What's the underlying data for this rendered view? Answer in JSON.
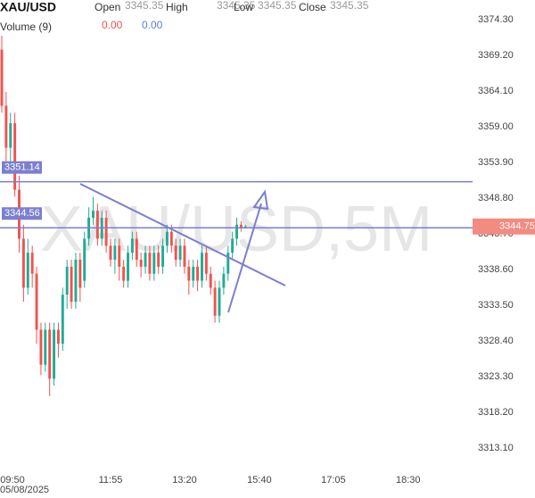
{
  "chart_data": {
    "type": "candlestick",
    "title": "XAU/USD",
    "watermark": "XAU/USD,5M",
    "header": [
      {
        "label": "Open",
        "value": 3345.35
      },
      {
        "label": "High",
        "value": 3345.35
      },
      {
        "label": "Low",
        "value": 3345.35
      },
      {
        "label": "Close",
        "value": 3345.35
      }
    ],
    "volume": {
      "label": "Volume (9)",
      "values": [
        {
          "value": 0,
          "label": "0.00",
          "color": "#ef5350"
        },
        {
          "value": 0,
          "label": "0.00",
          "color": "#5b7fd6"
        }
      ]
    },
    "up_color": "#22ab94",
    "down_color": "#ef5350",
    "open": [
      3370,
      3362,
      3356,
      3359.5,
      3350,
      3343,
      3336,
      3341,
      3338,
      3330,
      3325,
      3330,
      3323,
      3330,
      3328,
      3335,
      3339,
      3334,
      3340,
      3337,
      3343,
      3346,
      3347,
      3343,
      3346,
      3342,
      3340,
      3342,
      3339,
      3337,
      3341,
      3343,
      3340,
      3339,
      3341,
      3338,
      3341,
      3339,
      3342,
      3344,
      3342,
      3340,
      3342,
      3339,
      3337,
      3339,
      3337,
      3341,
      3338,
      3336,
      3332,
      3336,
      3338,
      3341,
      3343,
      3345,
      3344.75
    ],
    "high": [
      3372,
      3364,
      3361,
      3361,
      3352,
      3345,
      3343,
      3342,
      3339,
      3331,
      3331,
      3331,
      3331,
      3331,
      3336,
      3340,
      3340,
      3341,
      3341,
      3344,
      3347.5,
      3349,
      3348,
      3347,
      3347,
      3343,
      3343,
      3343,
      3340,
      3342,
      3344,
      3344,
      3341,
      3342,
      3342,
      3342,
      3342,
      3343,
      3345,
      3345,
      3343,
      3343,
      3343,
      3340,
      3340,
      3340,
      3342,
      3342,
      3339,
      3337,
      3337,
      3339,
      3342,
      3344,
      3346,
      3345.5,
      3345
    ],
    "low": [
      3361,
      3354,
      3354,
      3349,
      3341,
      3334,
      3335,
      3336,
      3328,
      3323.5,
      3324,
      3320.5,
      3322,
      3326,
      3327,
      3333,
      3333,
      3333,
      3334,
      3336,
      3342,
      3345,
      3342,
      3342,
      3341,
      3339,
      3338,
      3337,
      3336,
      3336,
      3340,
      3339,
      3337.5,
      3338,
      3337,
      3337,
      3338,
      3338,
      3341,
      3341,
      3339,
      3339,
      3338,
      3335,
      3336,
      3335.5,
      3336,
      3337,
      3335,
      3331,
      3331,
      3335,
      3337,
      3340,
      3342,
      3344,
      3344.5
    ],
    "close": [
      3362,
      3356,
      3359.5,
      3350,
      3343,
      3336,
      3341,
      3338,
      3330,
      3325,
      3330,
      3323,
      3330,
      3328,
      3335,
      3339,
      3334,
      3340,
      3336,
      3343,
      3346,
      3347,
      3343,
      3346,
      3342,
      3340,
      3342,
      3339,
      3337,
      3341,
      3343,
      3340,
      3339,
      3341,
      3338,
      3341,
      3339,
      3342,
      3344,
      3342,
      3340,
      3342,
      3339,
      3337,
      3339,
      3337,
      3341,
      3338,
      3336,
      3332,
      3336,
      3338,
      3341,
      3343,
      3345,
      3344.5,
      3344.75
    ],
    "xlim": [
      -0.41,
      108.2
    ],
    "xticks": [
      {
        "value": 2.46,
        "label": "09:50"
      },
      {
        "value": 25.0,
        "label": "11:55"
      },
      {
        "value": 42.0,
        "label": "13:20"
      },
      {
        "value": 59.2,
        "label": "15:40"
      },
      {
        "value": 76.2,
        "label": "17:05"
      },
      {
        "value": 93.4,
        "label": "18:30"
      }
    ],
    "date": "05/08/2025",
    "ylim": [
      3310.8,
      3377.11
    ],
    "yticks": [
      {
        "value": 3374.3,
        "label": "3374.30"
      },
      {
        "value": 3369.2,
        "label": "3369.20"
      },
      {
        "value": 3364.1,
        "label": "3364.10"
      },
      {
        "value": 3359.0,
        "label": "3359.00"
      },
      {
        "value": 3353.9,
        "label": "3353.90"
      },
      {
        "value": 3348.8,
        "label": "3348.80"
      },
      {
        "value": 3343.7,
        "label": "3343.70"
      },
      {
        "value": 3338.6,
        "label": "3338.60"
      },
      {
        "value": 3333.5,
        "label": "3333.50"
      },
      {
        "value": 3328.4,
        "label": "3328.40"
      },
      {
        "value": 3323.3,
        "label": "3323.30"
      },
      {
        "value": 3318.2,
        "label": "3318.20"
      },
      {
        "value": 3313.1,
        "label": "3313.10"
      }
    ],
    "price_lines": [
      {
        "value": 3351.14,
        "color": "#7b7fd0"
      },
      {
        "value": 3344.56,
        "color": "#7b7fd0"
      }
    ],
    "last_price": {
      "value": 3344.75,
      "color": "#f28b82"
    }
  }
}
